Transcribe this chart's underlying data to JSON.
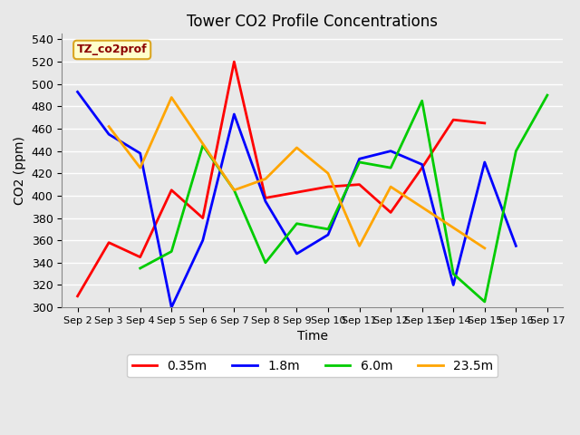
{
  "title": "Tower CO2 Profile Concentrations",
  "xlabel": "Time",
  "ylabel": "CO2 (ppm)",
  "ylim": [
    300,
    545
  ],
  "yticks": [
    300,
    320,
    340,
    360,
    380,
    400,
    420,
    440,
    460,
    480,
    500,
    520,
    540
  ],
  "xtick_labels": [
    "Sep 2",
    "Sep 3",
    "Sep 4",
    "Sep 5",
    "Sep 6",
    "Sep 7",
    "Sep 8",
    "Sep 9",
    "Sep 10",
    "Sep 11",
    "Sep 12",
    "Sep 13",
    "Sep 14",
    "Sep 15",
    "Sep 16",
    "Sep 17"
  ],
  "annotation_text": "TZ_co2prof",
  "annotation_color": "#8B0000",
  "annotation_bg": "#FFFFCC",
  "annotation_border": "#DAA520",
  "red_x": [
    0,
    1,
    2,
    3,
    4,
    5,
    6,
    7,
    8,
    9,
    10,
    11,
    12,
    13
  ],
  "red_y": [
    310,
    358,
    345,
    405,
    380,
    520,
    398,
    403,
    408,
    410,
    385,
    425,
    468,
    465
  ],
  "blue_x": [
    0,
    1,
    2,
    3,
    4,
    5,
    6,
    7,
    8,
    9,
    10,
    11,
    12,
    13,
    14
  ],
  "blue_y": [
    493,
    455,
    438,
    300,
    360,
    473,
    395,
    348,
    365,
    433,
    440,
    428,
    320,
    430,
    355
  ],
  "green_x": [
    2,
    3,
    4,
    5,
    6,
    7,
    8,
    9,
    10,
    11,
    12,
    13,
    14,
    15
  ],
  "green_y": [
    335,
    350,
    445,
    405,
    340,
    375,
    370,
    430,
    425,
    485,
    330,
    305,
    440,
    490
  ],
  "orange_x": [
    1,
    2,
    3,
    5,
    6,
    7,
    8,
    9,
    10,
    13
  ],
  "orange_y": [
    462,
    425,
    488,
    405,
    415,
    443,
    420,
    355,
    408,
    353
  ],
  "background_color": "#E8E8E8",
  "grid_color": "#FFFFFF",
  "legend_items": [
    {
      "label": "0.35m",
      "color": "#FF0000"
    },
    {
      "label": "1.8m",
      "color": "#0000FF"
    },
    {
      "label": "6.0m",
      "color": "#00CC00"
    },
    {
      "label": "23.5m",
      "color": "#FFA500"
    }
  ]
}
